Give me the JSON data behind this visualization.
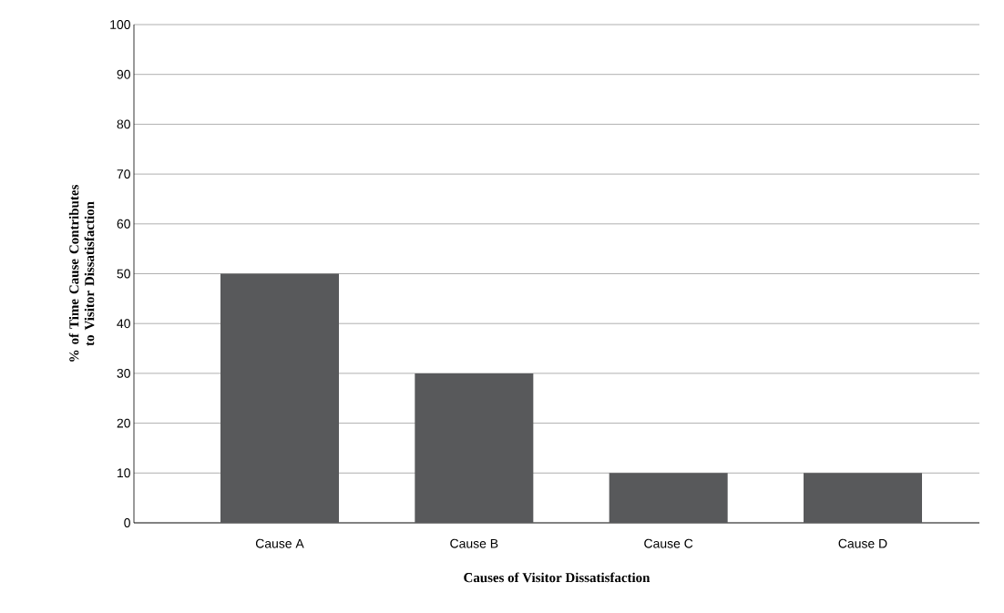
{
  "chart_data": {
    "type": "bar",
    "xlabel": "Causes of Visitor Dissatisfaction",
    "ylabel": "% of Time Cause Contributes to Visitor Dissatisfaction",
    "categories": [
      "Cause A",
      "Cause B",
      "Cause C",
      "Cause D"
    ],
    "values": [
      50,
      30,
      10,
      10
    ],
    "color": "#58595b",
    "ylim": [
      0,
      100
    ],
    "yticks": [
      0,
      10,
      20,
      30,
      40,
      50,
      60,
      70,
      80,
      90,
      100
    ],
    "grid": "y"
  }
}
